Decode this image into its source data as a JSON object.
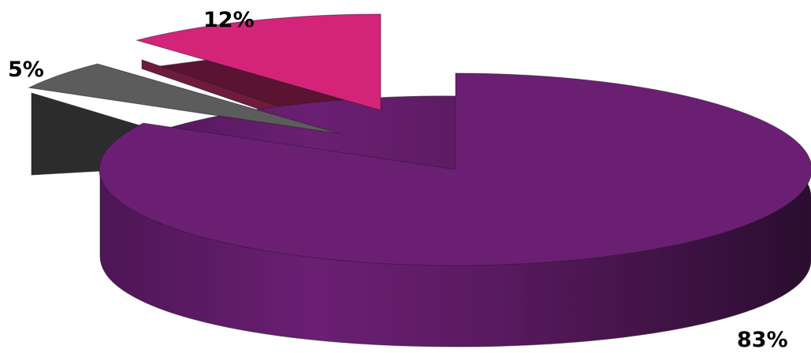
{
  "chart_data": {
    "type": "pie",
    "style": "3d-exploded",
    "slices": [
      {
        "value": 83,
        "label": "83%",
        "color": "#6b1f73"
      },
      {
        "value": 5,
        "label": "5%",
        "color": "#5c5c5c"
      },
      {
        "value": 12,
        "label": "12%",
        "color": "#d4247a"
      }
    ],
    "legend": false,
    "grid": false
  }
}
